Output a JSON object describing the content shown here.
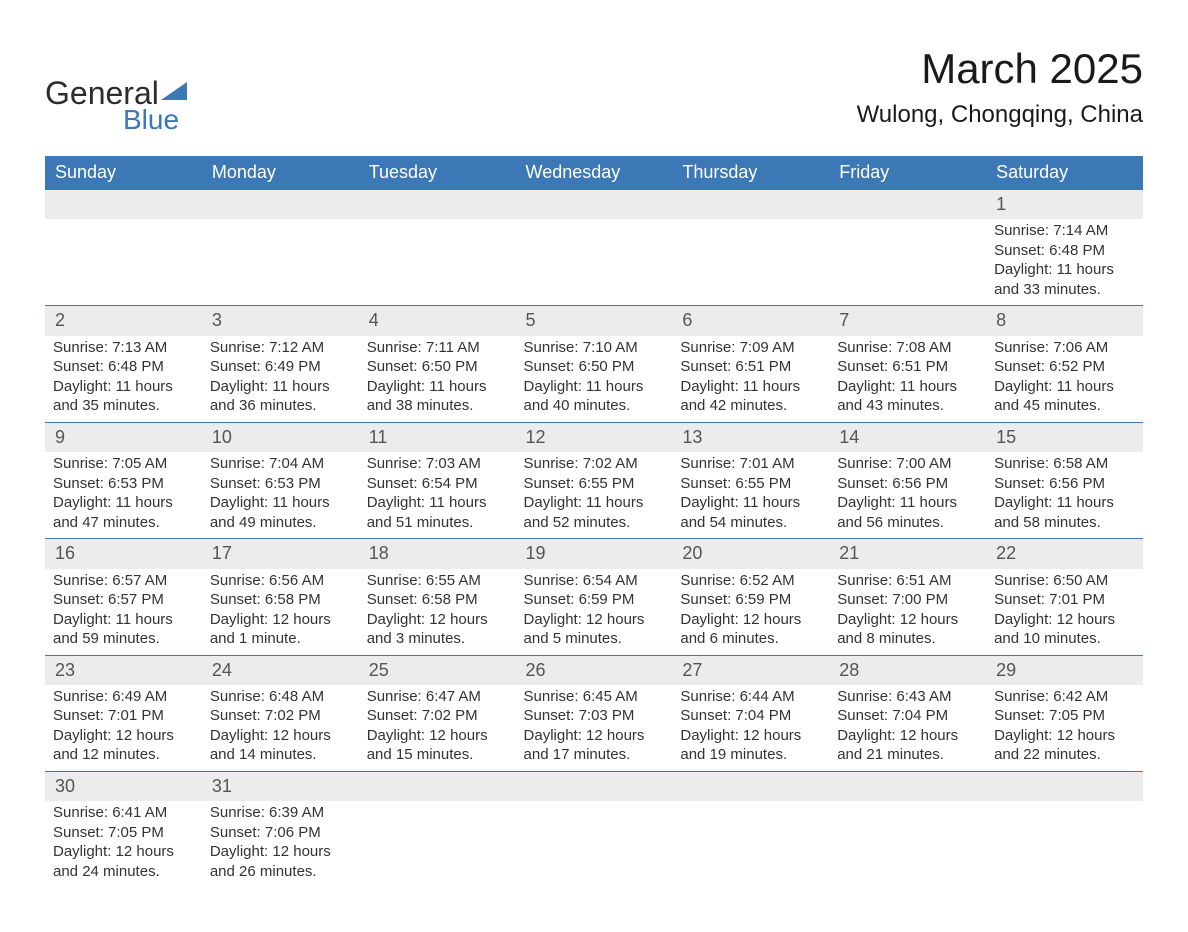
{
  "brand": {
    "word1": "General",
    "word2": "Blue"
  },
  "title": "March 2025",
  "location": "Wulong, Chongqing, China",
  "colors": {
    "header_bg": "#3b78b5",
    "header_text": "#ffffff",
    "daynum_bg": "#ececec",
    "border": "#3b78b5",
    "text": "#333333",
    "page_bg": "#ffffff"
  },
  "weekdays": [
    "Sunday",
    "Monday",
    "Tuesday",
    "Wednesday",
    "Thursday",
    "Friday",
    "Saturday"
  ],
  "weeks": [
    {
      "days": [
        null,
        null,
        null,
        null,
        null,
        null,
        {
          "n": "1",
          "sunrise": "7:14 AM",
          "sunset": "6:48 PM",
          "daylight": "11 hours and 33 minutes."
        }
      ]
    },
    {
      "days": [
        {
          "n": "2",
          "sunrise": "7:13 AM",
          "sunset": "6:48 PM",
          "daylight": "11 hours and 35 minutes."
        },
        {
          "n": "3",
          "sunrise": "7:12 AM",
          "sunset": "6:49 PM",
          "daylight": "11 hours and 36 minutes."
        },
        {
          "n": "4",
          "sunrise": "7:11 AM",
          "sunset": "6:50 PM",
          "daylight": "11 hours and 38 minutes."
        },
        {
          "n": "5",
          "sunrise": "7:10 AM",
          "sunset": "6:50 PM",
          "daylight": "11 hours and 40 minutes."
        },
        {
          "n": "6",
          "sunrise": "7:09 AM",
          "sunset": "6:51 PM",
          "daylight": "11 hours and 42 minutes."
        },
        {
          "n": "7",
          "sunrise": "7:08 AM",
          "sunset": "6:51 PM",
          "daylight": "11 hours and 43 minutes."
        },
        {
          "n": "8",
          "sunrise": "7:06 AM",
          "sunset": "6:52 PM",
          "daylight": "11 hours and 45 minutes."
        }
      ]
    },
    {
      "days": [
        {
          "n": "9",
          "sunrise": "7:05 AM",
          "sunset": "6:53 PM",
          "daylight": "11 hours and 47 minutes."
        },
        {
          "n": "10",
          "sunrise": "7:04 AM",
          "sunset": "6:53 PM",
          "daylight": "11 hours and 49 minutes."
        },
        {
          "n": "11",
          "sunrise": "7:03 AM",
          "sunset": "6:54 PM",
          "daylight": "11 hours and 51 minutes."
        },
        {
          "n": "12",
          "sunrise": "7:02 AM",
          "sunset": "6:55 PM",
          "daylight": "11 hours and 52 minutes."
        },
        {
          "n": "13",
          "sunrise": "7:01 AM",
          "sunset": "6:55 PM",
          "daylight": "11 hours and 54 minutes."
        },
        {
          "n": "14",
          "sunrise": "7:00 AM",
          "sunset": "6:56 PM",
          "daylight": "11 hours and 56 minutes."
        },
        {
          "n": "15",
          "sunrise": "6:58 AM",
          "sunset": "6:56 PM",
          "daylight": "11 hours and 58 minutes."
        }
      ]
    },
    {
      "days": [
        {
          "n": "16",
          "sunrise": "6:57 AM",
          "sunset": "6:57 PM",
          "daylight": "11 hours and 59 minutes."
        },
        {
          "n": "17",
          "sunrise": "6:56 AM",
          "sunset": "6:58 PM",
          "daylight": "12 hours and 1 minute."
        },
        {
          "n": "18",
          "sunrise": "6:55 AM",
          "sunset": "6:58 PM",
          "daylight": "12 hours and 3 minutes."
        },
        {
          "n": "19",
          "sunrise": "6:54 AM",
          "sunset": "6:59 PM",
          "daylight": "12 hours and 5 minutes."
        },
        {
          "n": "20",
          "sunrise": "6:52 AM",
          "sunset": "6:59 PM",
          "daylight": "12 hours and 6 minutes."
        },
        {
          "n": "21",
          "sunrise": "6:51 AM",
          "sunset": "7:00 PM",
          "daylight": "12 hours and 8 minutes."
        },
        {
          "n": "22",
          "sunrise": "6:50 AM",
          "sunset": "7:01 PM",
          "daylight": "12 hours and 10 minutes."
        }
      ]
    },
    {
      "days": [
        {
          "n": "23",
          "sunrise": "6:49 AM",
          "sunset": "7:01 PM",
          "daylight": "12 hours and 12 minutes."
        },
        {
          "n": "24",
          "sunrise": "6:48 AM",
          "sunset": "7:02 PM",
          "daylight": "12 hours and 14 minutes."
        },
        {
          "n": "25",
          "sunrise": "6:47 AM",
          "sunset": "7:02 PM",
          "daylight": "12 hours and 15 minutes."
        },
        {
          "n": "26",
          "sunrise": "6:45 AM",
          "sunset": "7:03 PM",
          "daylight": "12 hours and 17 minutes."
        },
        {
          "n": "27",
          "sunrise": "6:44 AM",
          "sunset": "7:04 PM",
          "daylight": "12 hours and 19 minutes."
        },
        {
          "n": "28",
          "sunrise": "6:43 AM",
          "sunset": "7:04 PM",
          "daylight": "12 hours and 21 minutes."
        },
        {
          "n": "29",
          "sunrise": "6:42 AM",
          "sunset": "7:05 PM",
          "daylight": "12 hours and 22 minutes."
        }
      ]
    },
    {
      "days": [
        {
          "n": "30",
          "sunrise": "6:41 AM",
          "sunset": "7:05 PM",
          "daylight": "12 hours and 24 minutes."
        },
        {
          "n": "31",
          "sunrise": "6:39 AM",
          "sunset": "7:06 PM",
          "daylight": "12 hours and 26 minutes."
        },
        null,
        null,
        null,
        null,
        null
      ]
    }
  ],
  "labels": {
    "sunrise_prefix": "Sunrise: ",
    "sunset_prefix": "Sunset: ",
    "daylight_prefix": "Daylight: "
  }
}
